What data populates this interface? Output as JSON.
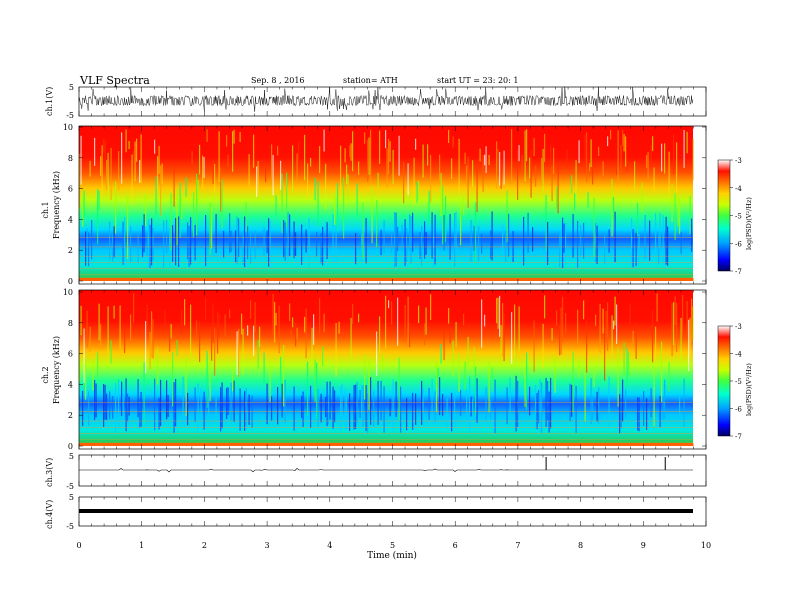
{
  "header": {
    "title": "VLF  Spectra",
    "date": "Sep. 8  , 2016",
    "station": "station= ATH",
    "start": "start  UT  =    23: 20: 1"
  },
  "chart_data": [
    {
      "type": "line",
      "name": "ch1-waveform",
      "ylabel": "ch.1(V)",
      "ylim": [
        -5,
        5
      ],
      "yticks": [
        "5",
        "-5"
      ],
      "xlim": [
        0,
        10
      ],
      "description_values": {
        "baseline": 0,
        "peak_amplitude": 2.4
      }
    },
    {
      "type": "heatmap",
      "name": "ch1-spectrogram",
      "ylabel_channel": "ch.1",
      "ylabel": "Frequency  (kHz)",
      "ylim": [
        0,
        10
      ],
      "yticks": [
        "0",
        "2",
        "4",
        "6",
        "8",
        "10"
      ],
      "colorbar": {
        "label": "log(PSD)(V²/Hz)",
        "range": [
          -7,
          -3
        ],
        "ticks": [
          "-3",
          "-4",
          "-5",
          "-6",
          "-7"
        ],
        "colors": [
          "#000080",
          "#0000ff",
          "#00a0ff",
          "#00ffd0",
          "#40ff40",
          "#c8ff00",
          "#ffd000",
          "#ff7000",
          "#ff1000",
          "#ffffff"
        ]
      }
    },
    {
      "type": "heatmap",
      "name": "ch2-spectrogram",
      "ylabel_channel": "ch.2",
      "ylabel": "Frequency  (kHz)",
      "ylim": [
        0,
        10
      ],
      "yticks": [
        "0",
        "2",
        "4",
        "6",
        "8",
        "10"
      ],
      "colorbar": {
        "label": "log(PSD)(V²/Hz)",
        "range": [
          -7,
          -3
        ],
        "ticks": [
          "-3",
          "-4",
          "-5",
          "-6",
          "-7"
        ]
      }
    },
    {
      "type": "line",
      "name": "ch3-waveform",
      "ylabel": "ch.3(V)",
      "ylim": [
        -5,
        5
      ],
      "yticks": [
        "5",
        "-5"
      ],
      "spikes_min": [
        7.45,
        9.35
      ]
    },
    {
      "type": "line",
      "name": "ch4-waveform",
      "ylabel": "ch.4(V)",
      "ylim": [
        -5,
        5
      ],
      "yticks": [
        "5",
        "-5"
      ],
      "baseline": 0
    }
  ],
  "xaxis": {
    "label": "Time  (min)",
    "range": [
      0,
      10
    ],
    "ticks": [
      "0",
      "1",
      "2",
      "3",
      "4",
      "5",
      "6",
      "7",
      "8",
      "9",
      "10"
    ],
    "data_end_min": 9.8
  }
}
